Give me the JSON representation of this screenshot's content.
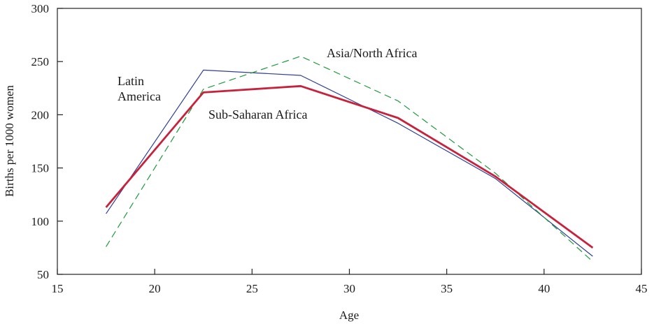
{
  "chart_data": {
    "type": "line",
    "title": "",
    "xlabel": "Age",
    "ylabel": "Births per 1000 women",
    "xlim": [
      15,
      45
    ],
    "ylim": [
      50,
      300
    ],
    "xticks": [
      15,
      20,
      25,
      30,
      35,
      40,
      45
    ],
    "yticks": [
      50,
      100,
      150,
      200,
      250,
      300
    ],
    "grid": false,
    "legend": "none (series labeled inline)",
    "series": [
      {
        "name": "Latin America",
        "color": "#2f3f93",
        "style": "solid-thin",
        "x": [
          17.5,
          22.5,
          27.5,
          32.5,
          37.5,
          42.5
        ],
        "y": [
          107,
          242,
          237,
          192,
          140,
          67
        ]
      },
      {
        "name": "Asia/North Africa",
        "color": "#1e9a3a",
        "style": "dashed",
        "x": [
          17.5,
          22.5,
          27.5,
          32.5,
          37.5,
          42.5
        ],
        "y": [
          76,
          224,
          255,
          213,
          145,
          62
        ]
      },
      {
        "name": "Sub-Saharan Africa",
        "color": "#c8213b",
        "style": "solid-thick",
        "x": [
          17.5,
          22.5,
          27.5,
          32.5,
          37.5,
          42.5
        ],
        "y": [
          113,
          221,
          227,
          197,
          142,
          75
        ]
      }
    ],
    "annotations": [
      {
        "series": "Latin America",
        "lines": [
          "Latin",
          "America"
        ]
      },
      {
        "series": "Asia/North Africa",
        "lines": [
          "Asia/North Africa"
        ]
      },
      {
        "series": "Sub-Saharan Africa",
        "lines": [
          "Sub-Saharan Africa"
        ]
      }
    ]
  }
}
